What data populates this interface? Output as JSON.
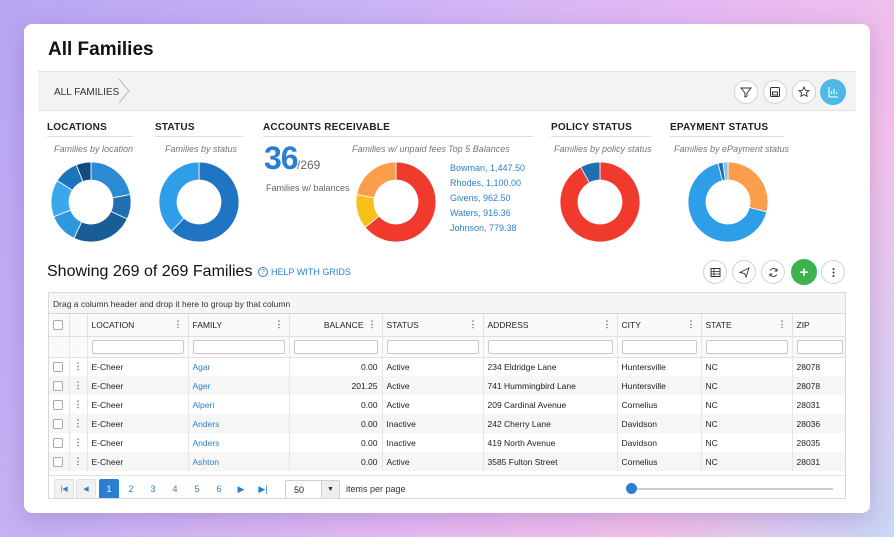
{
  "page": {
    "title": "All Families"
  },
  "breadcrumb": {
    "label": "ALL FAMILIES"
  },
  "toolbar_icons": [
    "filter-icon",
    "save-icon",
    "star-icon",
    "chart-icon"
  ],
  "widgets": {
    "locations": {
      "title": "LOCATIONS",
      "subtitle": "Families by location"
    },
    "status": {
      "title": "STATUS",
      "subtitle": "Families by status"
    },
    "ar": {
      "title": "ACCOUNTS RECEIVABLE",
      "big": "36",
      "den": "/269",
      "caption": "Families w/ balances",
      "subtitle": "Families w/ unpaid fees",
      "top5_title": "Top 5 Balances",
      "top5": [
        "Bowman, 1,447.50",
        "Rhodes, 1,100.00",
        "Givens, 962.50",
        "Waters, 916.36",
        "Johnson, 779.38"
      ]
    },
    "policy": {
      "title": "POLICY STATUS",
      "subtitle": "Families by policy status"
    },
    "epayment": {
      "title": "EPAYMENT STATUS",
      "subtitle": "Families by ePayment status"
    }
  },
  "chart_data": [
    {
      "type": "pie",
      "name": "locations",
      "values": [
        22,
        10,
        25,
        12,
        15,
        10,
        6
      ],
      "colors": [
        "#2a8ad4",
        "#1f6fb2",
        "#195d96",
        "#2c98de",
        "#3aa8ea",
        "#1b75bd",
        "#0f4c82"
      ]
    },
    {
      "type": "pie",
      "name": "status",
      "values": [
        62,
        38
      ],
      "colors": [
        "#1f75c4",
        "#2f9ee8"
      ]
    },
    {
      "type": "pie",
      "name": "unpaid_fees",
      "values": [
        64,
        14,
        22
      ],
      "colors": [
        "#f03a2e",
        "#f7c118",
        "#fb9e4b"
      ]
    },
    {
      "type": "pie",
      "name": "policy",
      "values": [
        92,
        8
      ],
      "colors": [
        "#f03a2e",
        "#1f6fb2"
      ]
    },
    {
      "type": "pie",
      "name": "epayment",
      "values": [
        29,
        67,
        2,
        2
      ],
      "colors": [
        "#fb9e4b",
        "#2f9ee8",
        "#1f6fb2",
        "#7cc7f0"
      ]
    }
  ],
  "grid": {
    "showing": "Showing 269 of 269 Families",
    "help": "HELP WITH GRIDS",
    "group_hint": "Drag a column header and drop it here to group by that column",
    "columns": [
      "LOCATION",
      "FAMILY",
      "BALANCE",
      "STATUS",
      "ADDRESS",
      "CITY",
      "STATE",
      "ZIP"
    ],
    "rows": [
      {
        "location": "E-Cheer",
        "family": "Agar",
        "balance": "0.00",
        "status": "Active",
        "address": "234 Eldridge Lane",
        "city": "Huntersville",
        "state": "NC",
        "zip": "28078"
      },
      {
        "location": "E-Cheer",
        "family": "Ager",
        "balance": "201.25",
        "status": "Active",
        "address": "741 Hummingbird Lane",
        "city": "Huntersville",
        "state": "NC",
        "zip": "28078"
      },
      {
        "location": "E-Cheer",
        "family": "Alperi",
        "balance": "0.00",
        "status": "Active",
        "address": "209 Cardinal Avenue",
        "city": "Cornelius",
        "state": "NC",
        "zip": "28031"
      },
      {
        "location": "E-Cheer",
        "family": "Anders",
        "balance": "0.00",
        "status": "Inactive",
        "address": "242 Cherry Lane",
        "city": "Davidson",
        "state": "NC",
        "zip": "28036"
      },
      {
        "location": "E-Cheer",
        "family": "Anders",
        "balance": "0.00",
        "status": "Inactive",
        "address": "419 North Avenue",
        "city": "Davidson",
        "state": "NC",
        "zip": "28035"
      },
      {
        "location": "E-Cheer",
        "family": "Ashton",
        "balance": "0.00",
        "status": "Active",
        "address": "3585 Fulton Street",
        "city": "Cornelius",
        "state": "NC",
        "zip": "28031"
      }
    ],
    "pages": [
      "1",
      "2",
      "3",
      "4",
      "5",
      "6"
    ],
    "per_page": "50",
    "per_page_label": "items per page"
  }
}
